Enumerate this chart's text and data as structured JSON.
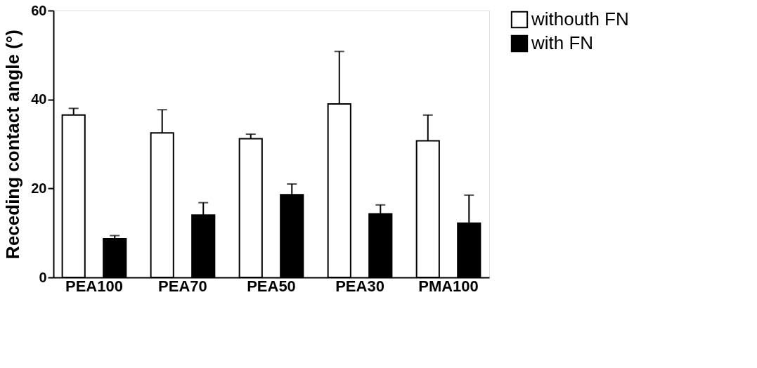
{
  "chart_data": {
    "type": "bar",
    "ylabel": "Receding contact angle (°)",
    "categories": [
      "PEA100",
      "PEA70",
      "PEA50",
      "PEA30",
      "PMA100"
    ],
    "series": [
      {
        "name": "withouth FN",
        "color": "#ffffff",
        "values": [
          36.5,
          32.5,
          31.2,
          39,
          30.7
        ],
        "errors": [
          [
            36.5,
            38
          ],
          [
            32.5,
            37.7
          ],
          [
            31.2,
            32.2
          ],
          [
            39,
            50.8
          ],
          [
            30.7,
            36.5
          ]
        ]
      },
      {
        "name": "with FN",
        "color": "#000000",
        "values": [
          8.7,
          14,
          18.6,
          14.3,
          12.2
        ],
        "errors": [
          [
            8.7,
            9.4
          ],
          [
            14,
            16.8
          ],
          [
            18.6,
            21
          ],
          [
            14.3,
            16.3
          ],
          [
            12.2,
            18.5
          ]
        ]
      }
    ],
    "ylim": [
      0,
      60
    ],
    "yticks": [
      0,
      20,
      40,
      60
    ],
    "grid": false,
    "legend": "top right"
  }
}
